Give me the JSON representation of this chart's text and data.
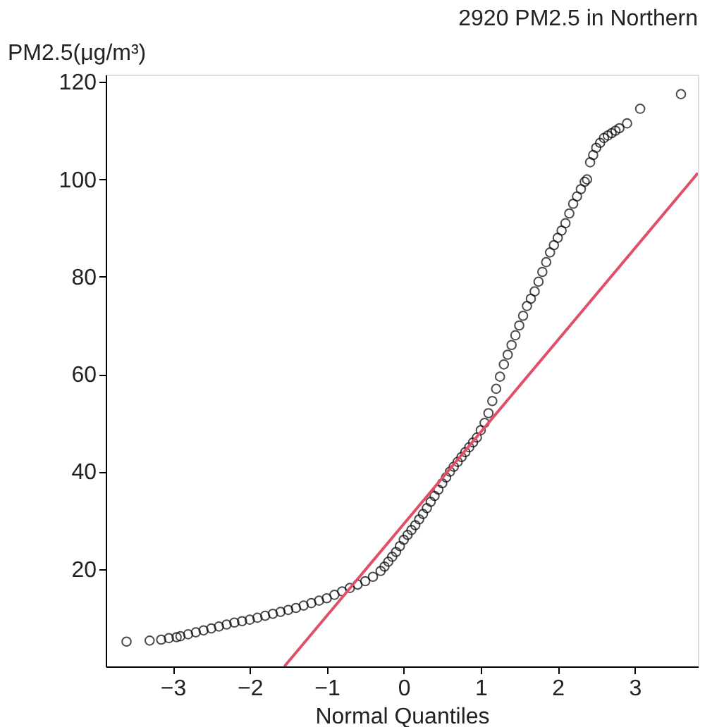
{
  "chart_data": {
    "type": "scatter",
    "title": "2920 PM2.5 in Northern",
    "xlabel": "Normal Quantiles",
    "ylabel": "PM2.5(μg/m³)",
    "xlim": [
      -3.87,
      3.82
    ],
    "xticks": [
      -3,
      -2,
      -1,
      0,
      1,
      2,
      3
    ],
    "ylim": [
      0,
      121.5
    ],
    "yticks": [
      20,
      40,
      60,
      80,
      100,
      120
    ],
    "grid": false,
    "series": [
      {
        "marker": "circle",
        "color": "#000000",
        "x": [
          -3.6,
          -3.3,
          -3.15,
          -3.05,
          -2.95,
          -2.9,
          -2.8,
          -2.7,
          -2.6,
          -2.5,
          -2.4,
          -2.3,
          -2.2,
          -2.1,
          -2.0,
          -1.9,
          -1.8,
          -1.7,
          -1.6,
          -1.5,
          -1.4,
          -1.3,
          -1.2,
          -1.1,
          -1.0,
          -0.9,
          -0.8,
          -0.7,
          -0.6,
          -0.5,
          -0.4,
          -0.3,
          -0.25,
          -0.2,
          -0.15,
          -0.1,
          -0.05,
          0.0,
          0.05,
          0.1,
          0.15,
          0.2,
          0.25,
          0.3,
          0.35,
          0.4,
          0.45,
          0.5,
          0.55,
          0.6,
          0.65,
          0.7,
          0.75,
          0.8,
          0.85,
          0.9,
          0.95,
          1.0,
          1.05,
          1.1,
          1.15,
          1.2,
          1.25,
          1.3,
          1.35,
          1.4,
          1.45,
          1.5,
          1.55,
          1.6,
          1.65,
          1.7,
          1.75,
          1.8,
          1.85,
          1.9,
          1.95,
          2.0,
          2.05,
          2.1,
          2.15,
          2.2,
          2.25,
          2.3,
          2.35,
          2.38,
          2.42,
          2.46,
          2.5,
          2.55,
          2.6,
          2.65,
          2.7,
          2.75,
          2.8,
          2.9,
          3.07,
          3.6
        ],
        "values": [
          5.1,
          5.3,
          5.5,
          5.8,
          6.0,
          6.2,
          6.6,
          7.0,
          7.4,
          7.8,
          8.2,
          8.6,
          9.0,
          9.3,
          9.6,
          10.0,
          10.4,
          10.8,
          11.2,
          11.6,
          12.0,
          12.5,
          13.0,
          13.5,
          14.0,
          14.7,
          15.4,
          16.1,
          16.8,
          17.5,
          18.4,
          19.6,
          20.5,
          21.5,
          22.5,
          23.5,
          24.7,
          26.0,
          27.0,
          28.0,
          29.0,
          30.2,
          31.3,
          32.5,
          33.8,
          35.0,
          36.3,
          37.6,
          38.8,
          40.0,
          41.0,
          42.0,
          43.0,
          44.0,
          45.0,
          46.0,
          47.0,
          48.5,
          50.0,
          52.0,
          54.5,
          57.0,
          59.5,
          62.0,
          64.0,
          66.0,
          68.0,
          70.0,
          72.0,
          74.0,
          75.5,
          77.0,
          79.0,
          81.0,
          83.0,
          85.0,
          86.5,
          88.0,
          89.5,
          91.0,
          93.0,
          95.0,
          96.5,
          98.0,
          99.5,
          100.0,
          103.5,
          105.0,
          106.5,
          107.5,
          108.5,
          109.0,
          109.5,
          110.0,
          110.5,
          111.5,
          114.5,
          117.5
        ]
      },
      {
        "type": "line",
        "color": "#e0506a",
        "x": [
          -1.55,
          3.82
        ],
        "values": [
          0,
          101.3
        ]
      }
    ]
  }
}
